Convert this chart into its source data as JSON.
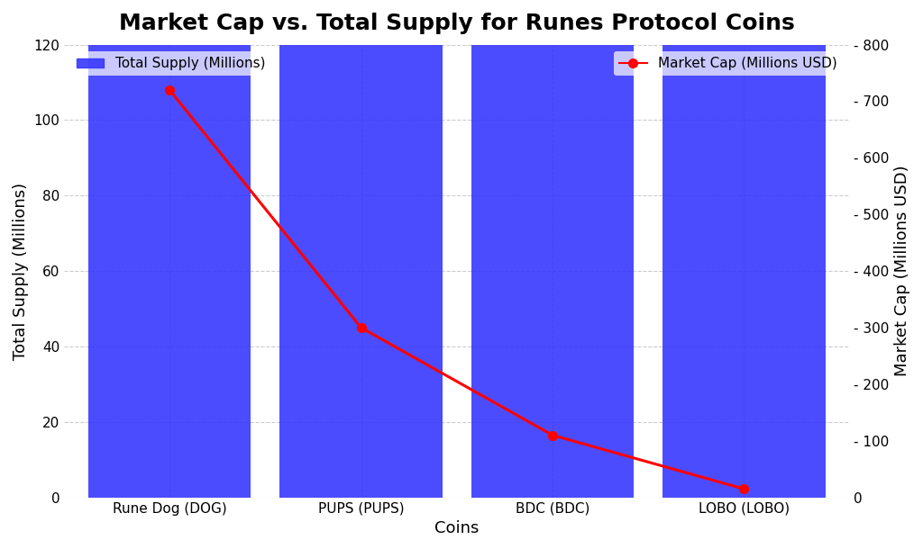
{
  "title": "Market Cap vs. Total Supply for Runes Protocol Coins",
  "coins": [
    "Rune Dog (DOG)",
    "PUPS (PUPS)",
    "BDC (BDC)",
    "LOBO (LOBO)"
  ],
  "total_supply_millions": [
    120,
    120,
    120,
    120
  ],
  "market_cap_millions_usd": [
    720,
    300,
    110,
    15
  ],
  "bar_color": "#3333FF",
  "bar_alpha": 0.88,
  "line_color": "red",
  "marker_color": "red",
  "xlabel": "Coins",
  "ylabel_left": "Total Supply (Millions)",
  "ylabel_right": "Market Cap (Millions USD)",
  "ylim_left": [
    0,
    120
  ],
  "ylim_right": [
    0,
    800
  ],
  "yticks_left": [
    0,
    20,
    40,
    60,
    80,
    100,
    120
  ],
  "yticks_right": [
    0,
    100,
    200,
    300,
    400,
    500,
    600,
    700,
    800
  ],
  "legend_supply_label": "Total Supply (Millions)",
  "legend_marketcap_label": "Market Cap (Millions USD)",
  "background_color": "#ffffff",
  "grid_color": "#999999",
  "title_fontsize": 18,
  "axis_label_fontsize": 13,
  "tick_fontsize": 11,
  "bar_width": 0.85
}
